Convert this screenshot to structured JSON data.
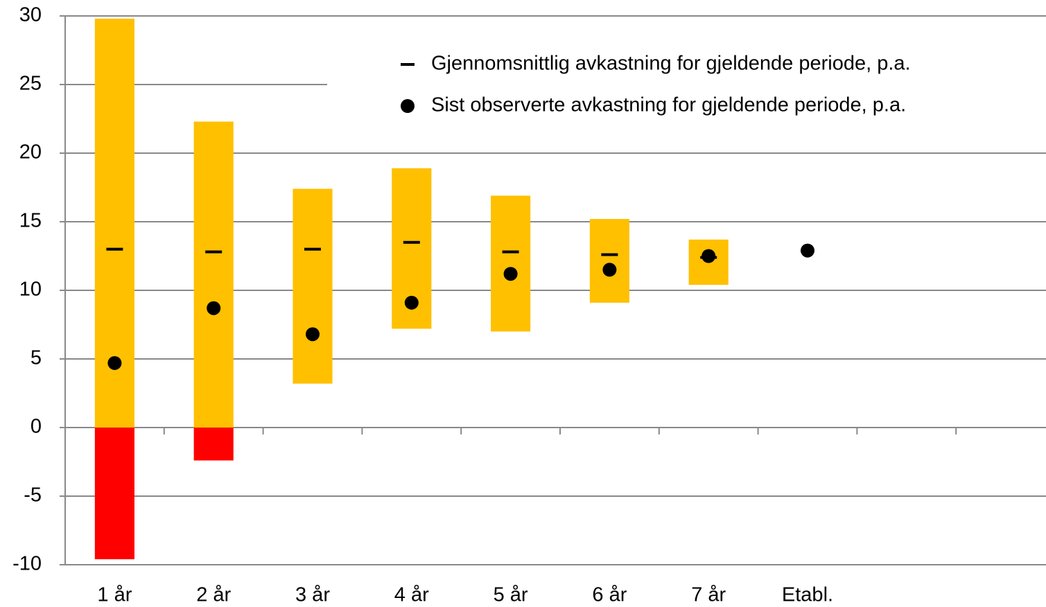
{
  "chart_data": {
    "type": "range",
    "categories": [
      "1 år",
      "2 år",
      "3 år",
      "4 år",
      "5 år",
      "6 år",
      "7 år",
      "Etabl.",
      null,
      null
    ],
    "ranges": {
      "low": [
        -9.6,
        -2.4,
        3.2,
        7.2,
        7.0,
        9.1,
        10.4,
        null,
        null,
        null
      ],
      "high": [
        29.8,
        22.3,
        17.4,
        18.9,
        16.9,
        15.2,
        13.7,
        null,
        null,
        null
      ],
      "color": "#ffc000",
      "negative_color": "#ff0000"
    },
    "series": [
      {
        "name": "Gjennomsnittlig avkastning for gjeldende periode, p.a.",
        "marker": "dash",
        "color": "#000000",
        "values": [
          13.0,
          12.8,
          13.0,
          13.5,
          12.8,
          12.6,
          12.4,
          null,
          null,
          null
        ]
      },
      {
        "name": "Sist observerte avkastning for gjeldende periode, p.a.",
        "marker": "dot",
        "color": "#000000",
        "values": [
          4.7,
          8.7,
          6.8,
          9.1,
          11.2,
          11.5,
          12.5,
          12.9,
          null,
          null
        ]
      }
    ],
    "ylim": [
      -10,
      30
    ],
    "yticks": [
      -10,
      -5,
      0,
      5,
      10,
      15,
      20,
      25,
      30
    ],
    "grid": true
  }
}
